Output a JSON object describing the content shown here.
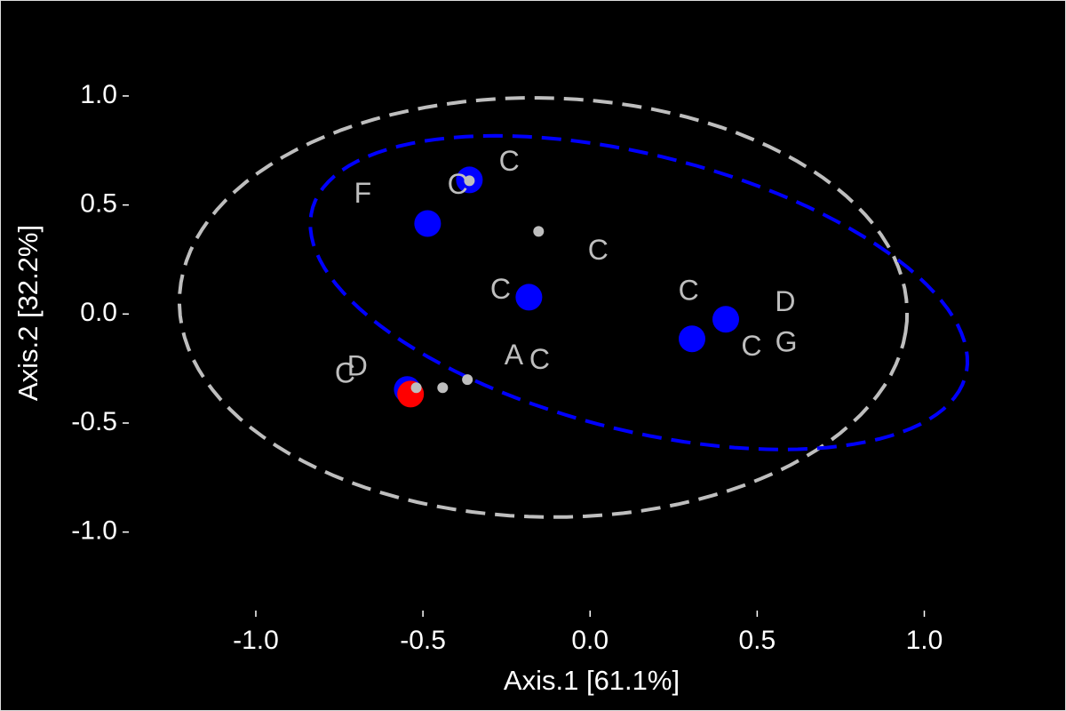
{
  "chart_data": {
    "type": "scatter",
    "xlabel": "Axis.1   [61.1%]",
    "ylabel": "Axis.2   [32.2%]",
    "xlim": [
      -1.38,
      1.4
    ],
    "ylim": [
      -1.36,
      1.33
    ],
    "xticks": [
      {
        "value": -1,
        "label": "-1.0"
      },
      {
        "value": -0.5,
        "label": "-0.5"
      },
      {
        "value": 0,
        "label": "0.0"
      },
      {
        "value": 0.5,
        "label": "0.5"
      },
      {
        "value": 1,
        "label": "1.0"
      }
    ],
    "yticks": [
      {
        "value": -1,
        "label": "-1.0"
      },
      {
        "value": -0.5,
        "label": "-0.5"
      },
      {
        "value": 0,
        "label": "0.0"
      },
      {
        "value": 0.5,
        "label": "0.5"
      },
      {
        "value": 1,
        "label": "1.0"
      }
    ],
    "ellipses": [
      {
        "color": "#bebebe",
        "center": [
          -0.14,
          0.03
        ],
        "radii": [
          1.09,
          0.96
        ],
        "angle": -6
      },
      {
        "color": "#0000ff",
        "center": [
          0.146,
          0.098
        ],
        "radii": [
          1.06,
          0.6
        ],
        "angle": -27
      }
    ],
    "series": [
      {
        "color": "#0000ff",
        "marker": "large",
        "x": [
          -0.361,
          -0.486,
          -0.183,
          0.406,
          0.305,
          -0.547
        ],
        "y": [
          0.615,
          0.415,
          0.077,
          -0.024,
          -0.114,
          -0.346
        ]
      },
      {
        "color": "#ff0000",
        "marker": "large",
        "x": [
          -0.537
        ],
        "y": [
          -0.367
        ]
      },
      {
        "color": "#bebebe",
        "marker": "small",
        "x": [
          -0.361,
          -0.154,
          -0.367,
          -0.441,
          -0.52
        ],
        "y": [
          0.611,
          0.379,
          -0.301,
          -0.338,
          -0.338
        ]
      }
    ],
    "labels": [
      {
        "text": "C",
        "x": -0.242,
        "y": 0.692
      },
      {
        "text": "F",
        "x": -0.68,
        "y": 0.546
      },
      {
        "text": "C",
        "x": -0.396,
        "y": 0.587
      },
      {
        "text": "C",
        "x": 0.024,
        "y": 0.285
      },
      {
        "text": "C",
        "x": -0.268,
        "y": 0.106
      },
      {
        "text": "C",
        "x": 0.295,
        "y": 0.098
      },
      {
        "text": "D",
        "x": 0.584,
        "y": 0.049
      },
      {
        "text": "C",
        "x": 0.483,
        "y": -0.155
      },
      {
        "text": "G",
        "x": 0.587,
        "y": -0.138
      },
      {
        "text": "A",
        "x": -0.228,
        "y": -0.196
      },
      {
        "text": "C",
        "x": -0.151,
        "y": -0.216
      },
      {
        "text": "D",
        "x": -0.696,
        "y": -0.248
      },
      {
        "text": "C",
        "x": -0.733,
        "y": -0.281
      }
    ],
    "label_color": "#bebebe"
  }
}
